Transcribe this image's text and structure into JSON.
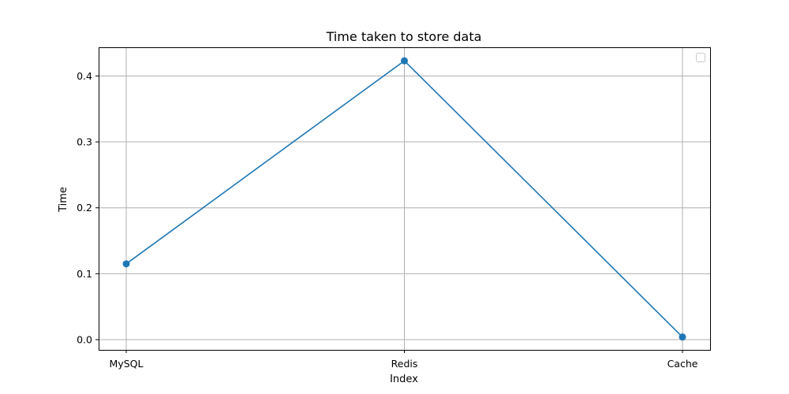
{
  "chart_data": {
    "type": "line",
    "title": "Time taken to store data",
    "xlabel": "Index",
    "ylabel": "Time",
    "categories": [
      "MySQL",
      "Redis",
      "Cache"
    ],
    "series": [
      {
        "values": [
          0.115,
          0.423,
          0.004
        ],
        "color": "#1f77b4",
        "marker": "circle"
      }
    ],
    "ylim": [
      -0.0155,
      0.4435
    ],
    "yticks": [
      0.0,
      0.1,
      0.2,
      0.3,
      0.4
    ],
    "ytick_labels": [
      "0.0",
      "0.1",
      "0.2",
      "0.3",
      "0.4"
    ],
    "grid": true,
    "legend": {
      "placement": "top-right",
      "entries": []
    }
  }
}
